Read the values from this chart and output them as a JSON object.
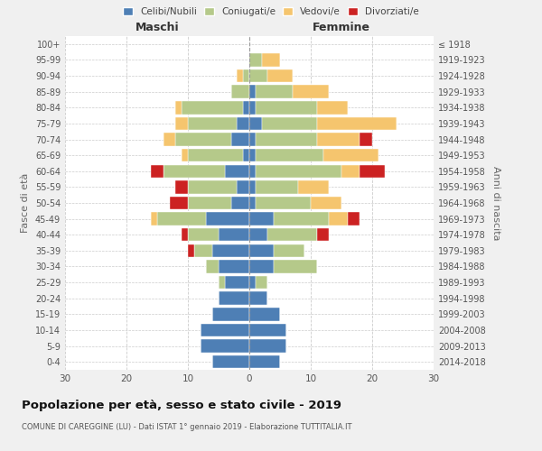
{
  "age_groups": [
    "0-4",
    "5-9",
    "10-14",
    "15-19",
    "20-24",
    "25-29",
    "30-34",
    "35-39",
    "40-44",
    "45-49",
    "50-54",
    "55-59",
    "60-64",
    "65-69",
    "70-74",
    "75-79",
    "80-84",
    "85-89",
    "90-94",
    "95-99",
    "100+"
  ],
  "birth_years": [
    "2014-2018",
    "2009-2013",
    "2004-2008",
    "1999-2003",
    "1994-1998",
    "1989-1993",
    "1984-1988",
    "1979-1983",
    "1974-1978",
    "1969-1973",
    "1964-1968",
    "1959-1963",
    "1954-1958",
    "1949-1953",
    "1944-1948",
    "1939-1943",
    "1934-1938",
    "1929-1933",
    "1924-1928",
    "1919-1923",
    "≤ 1918"
  ],
  "males": {
    "celibe": [
      6,
      8,
      8,
      6,
      5,
      4,
      5,
      6,
      5,
      7,
      3,
      2,
      4,
      1,
      3,
      2,
      1,
      0,
      0,
      0,
      0
    ],
    "coniugato": [
      0,
      0,
      0,
      0,
      0,
      1,
      2,
      3,
      5,
      8,
      7,
      8,
      10,
      9,
      9,
      8,
      10,
      3,
      1,
      0,
      0
    ],
    "vedovo": [
      0,
      0,
      0,
      0,
      0,
      0,
      0,
      0,
      0,
      1,
      0,
      0,
      0,
      1,
      2,
      2,
      1,
      0,
      1,
      0,
      0
    ],
    "divorziato": [
      0,
      0,
      0,
      0,
      0,
      0,
      0,
      1,
      1,
      0,
      3,
      2,
      2,
      0,
      0,
      0,
      0,
      0,
      0,
      0,
      0
    ]
  },
  "females": {
    "nubile": [
      5,
      6,
      6,
      5,
      3,
      1,
      4,
      4,
      3,
      4,
      1,
      1,
      1,
      1,
      1,
      2,
      1,
      1,
      0,
      0,
      0
    ],
    "coniugata": [
      0,
      0,
      0,
      0,
      0,
      2,
      7,
      5,
      8,
      9,
      9,
      7,
      14,
      11,
      10,
      9,
      10,
      6,
      3,
      2,
      0
    ],
    "vedova": [
      0,
      0,
      0,
      0,
      0,
      0,
      0,
      0,
      0,
      3,
      5,
      5,
      3,
      9,
      7,
      13,
      5,
      6,
      4,
      3,
      0
    ],
    "divorziata": [
      0,
      0,
      0,
      0,
      0,
      0,
      0,
      0,
      2,
      2,
      0,
      0,
      4,
      0,
      2,
      0,
      0,
      0,
      0,
      0,
      0
    ]
  },
  "colors": {
    "celibe": "#4e7fb5",
    "coniugato": "#b5c98a",
    "vedovo": "#f5c56e",
    "divorziato": "#cc2222"
  },
  "xlim": 30,
  "title": "Popolazione per età, sesso e stato civile - 2019",
  "subtitle": "COMUNE DI CAREGGINE (LU) - Dati ISTAT 1° gennaio 2019 - Elaborazione TUTTITALIA.IT",
  "ylabel_left": "Fasce di età",
  "ylabel_right": "Anni di nascita",
  "xlabel_maschi": "Maschi",
  "xlabel_femmine": "Femmine",
  "bg_color": "#f0f0f0",
  "plot_bg": "#ffffff"
}
